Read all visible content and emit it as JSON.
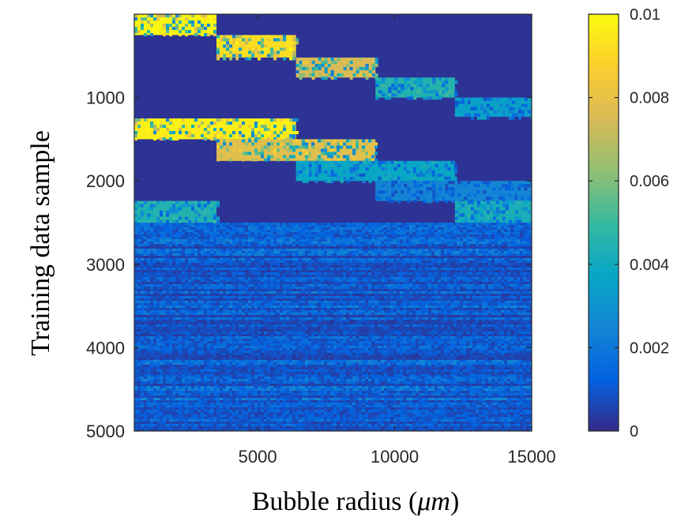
{
  "chart_data": {
    "type": "heatmap",
    "title": "",
    "xlabel_text": "Bubble radius (",
    "xlabel_unit": "μm",
    "xlabel_close": ")",
    "ylabel": "Training data sample",
    "xlim": [
      500,
      15000
    ],
    "ylim": [
      0,
      5000
    ],
    "y_direction": "reversed",
    "x_ticks": [
      {
        "value": 5000,
        "label": "5000"
      },
      {
        "value": 10000,
        "label": "10000"
      },
      {
        "value": 15000,
        "label": "15000"
      }
    ],
    "y_ticks": [
      {
        "value": 1000,
        "label": "1000"
      },
      {
        "value": 2000,
        "label": "2000"
      },
      {
        "value": 3000,
        "label": "3000"
      },
      {
        "value": 4000,
        "label": "4000"
      },
      {
        "value": 5000,
        "label": "5000"
      }
    ],
    "colorbar": {
      "colormap": "parula",
      "min": 0,
      "max": 0.01,
      "ticks": [
        {
          "value": 0,
          "label": "0"
        },
        {
          "value": 0.002,
          "label": "0.002"
        },
        {
          "value": 0.004,
          "label": "0.004"
        },
        {
          "value": 0.006,
          "label": "0.006"
        },
        {
          "value": 0.008,
          "label": "0.008"
        },
        {
          "value": 0.01,
          "label": "0.01"
        }
      ]
    },
    "background_value": 0.0002,
    "blocks": [
      {
        "x": [
          500,
          3500
        ],
        "y": [
          0,
          250
        ],
        "value": 0.0098
      },
      {
        "x": [
          3500,
          6400
        ],
        "y": [
          250,
          520
        ],
        "value": 0.0092
      },
      {
        "x": [
          6400,
          9300
        ],
        "y": [
          520,
          760
        ],
        "value": 0.0075
      },
      {
        "x": [
          9300,
          12200
        ],
        "y": [
          760,
          1000
        ],
        "value": 0.0045
      },
      {
        "x": [
          12200,
          15000
        ],
        "y": [
          1000,
          1230
        ],
        "value": 0.0035
      },
      {
        "x": [
          500,
          6400
        ],
        "y": [
          1250,
          1500
        ],
        "value": 0.0096
      },
      {
        "x": [
          3500,
          9300
        ],
        "y": [
          1500,
          1760
        ],
        "value": 0.0078
      },
      {
        "x": [
          6400,
          12200
        ],
        "y": [
          1760,
          2000
        ],
        "value": 0.0038
      },
      {
        "x": [
          9300,
          15000
        ],
        "y": [
          2000,
          2240
        ],
        "value": 0.0025
      },
      {
        "x": [
          500,
          3500
        ],
        "y": [
          2240,
          2500
        ],
        "value": 0.0045
      },
      {
        "x": [
          12200,
          15000
        ],
        "y": [
          2240,
          2500
        ],
        "value": 0.0042
      }
    ],
    "noise_region": {
      "x": [
        500,
        15000
      ],
      "y": [
        2500,
        5000
      ],
      "value": 0.0016
    }
  },
  "colors": {
    "parula_stops": [
      "#352a87",
      "#0363e1",
      "#1485d4",
      "#06a7c6",
      "#38b99e",
      "#92bf73",
      "#d9ba56",
      "#fcce2e",
      "#f9fb0e"
    ]
  }
}
